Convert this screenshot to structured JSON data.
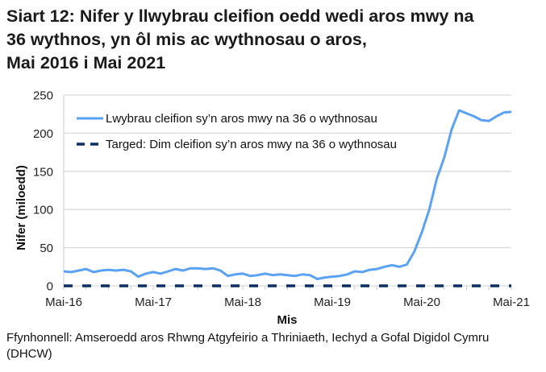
{
  "title": {
    "lines": [
      "Siart 12: Nifer y llwybrau cleifion oedd wedi aros mwy na",
      "36 wythnos, yn ôl mis ac wythnosau o aros,",
      "Mai 2016 i Mai 2021"
    ]
  },
  "source": {
    "lines": [
      "Ffynhonnell: Amseroedd aros Rhwng Atgyfeirio a Thriniaeth, Iechyd a Gofal Digidol Cymru",
      "(DHCW)"
    ]
  },
  "colors": {
    "series_main": "#5aa2f5",
    "series_target": "#0d2e63",
    "gridline": "#d9d9d9",
    "axis_text": "#222222"
  },
  "chart_data": {
    "type": "line",
    "title": "Siart 12: Nifer y llwybrau cleifion oedd wedi aros mwy na 36 wythnos, yn ôl mis ac wythnosau o aros, Mai 2016 i Mai 2021",
    "xlabel": "Mis",
    "ylabel": "Nifer (miloedd)",
    "ylim": [
      0,
      250
    ],
    "yticks": [
      0,
      50,
      100,
      150,
      200,
      250
    ],
    "xtick_labels": [
      "Mai-16",
      "Mai-17",
      "Mai-18",
      "Mai-19",
      "Mai-20",
      "Mai-21"
    ],
    "grid": true,
    "legend_position": "upper-left inside",
    "x_count": 61,
    "series": [
      {
        "name": "Lwybrau cleifion sy’n aros mwy na 36 o wythnosau",
        "style": "solid",
        "values": [
          19,
          18,
          20,
          22,
          18,
          20,
          21,
          20,
          21,
          19,
          12,
          16,
          18,
          16,
          19,
          22,
          20,
          23,
          23,
          22,
          23,
          20,
          13,
          15,
          16,
          13,
          14,
          16,
          14,
          15,
          14,
          13,
          15,
          14,
          9,
          11,
          12,
          13,
          15,
          19,
          18,
          21,
          22,
          25,
          27,
          25,
          28,
          45,
          70,
          100,
          140,
          168,
          205,
          230,
          226,
          222,
          217,
          216,
          222,
          227,
          228
        ]
      },
      {
        "name": "Targed: Dim cleifion sy’n aros mwy na 36 o wythnosau",
        "style": "dashed",
        "values": [
          0,
          0,
          0,
          0,
          0,
          0,
          0,
          0,
          0,
          0,
          0,
          0,
          0,
          0,
          0,
          0,
          0,
          0,
          0,
          0,
          0,
          0,
          0,
          0,
          0,
          0,
          0,
          0,
          0,
          0,
          0,
          0,
          0,
          0,
          0,
          0,
          0,
          0,
          0,
          0,
          0,
          0,
          0,
          0,
          0,
          0,
          0,
          0,
          0,
          0,
          0,
          0,
          0,
          0,
          0,
          0,
          0,
          0,
          0,
          0,
          0
        ]
      }
    ]
  }
}
